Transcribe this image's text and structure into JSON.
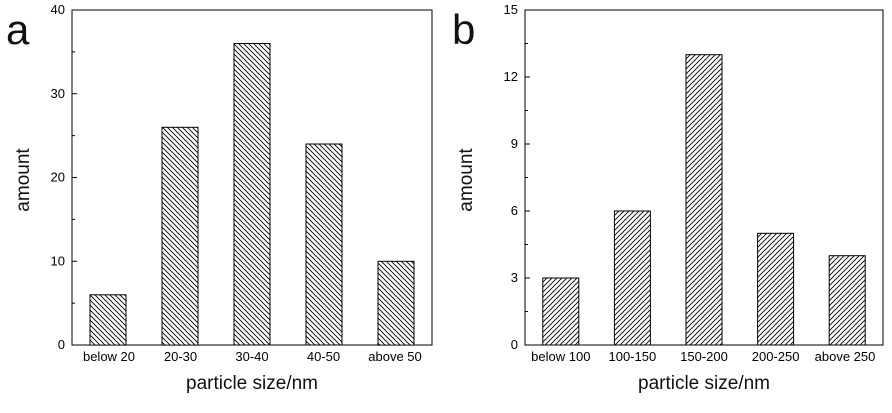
{
  "chart_data": [
    {
      "panel_label": "a",
      "type": "bar",
      "categories": [
        "below 20",
        "20-30",
        "30-40",
        "40-50",
        "above 50"
      ],
      "values": [
        6,
        26,
        36,
        24,
        10
      ],
      "xlabel": "particle size/nm",
      "ylabel": "amount",
      "ylim": [
        0,
        40
      ],
      "yticks": [
        "0",
        "10",
        "20",
        "30",
        "40"
      ],
      "hatch": "backslash",
      "grid": false,
      "legend": "none"
    },
    {
      "panel_label": "b",
      "type": "bar",
      "categories": [
        "below 100",
        "100-150",
        "150-200",
        "200-250",
        "above 250"
      ],
      "values": [
        3,
        6,
        13,
        5,
        4
      ],
      "xlabel": "particle size/nm",
      "ylabel": "amount",
      "ylim": [
        0,
        15
      ],
      "yticks": [
        "0",
        "3",
        "6",
        "9",
        "12",
        "15"
      ],
      "hatch": "slash",
      "grid": false,
      "legend": "none"
    }
  ],
  "colors": {
    "axis": "#000000",
    "bar_fill": "#ffffff",
    "hatch": "#000000",
    "text": "#111111"
  }
}
